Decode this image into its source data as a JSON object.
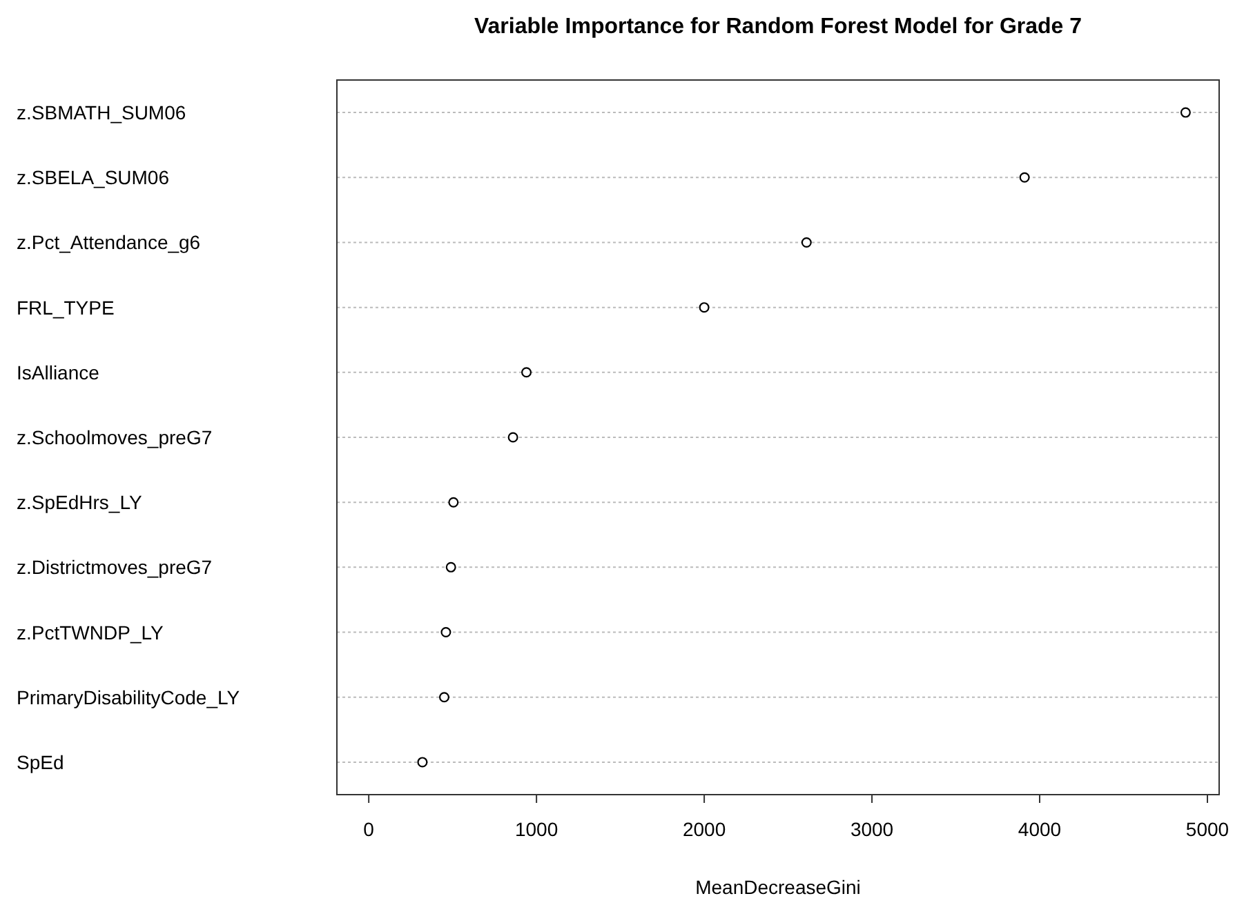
{
  "chart_data": {
    "type": "scatter",
    "orientation": "horizontal",
    "title": "Variable Importance for Random Forest Model for Grade 7",
    "xlabel": "MeanDecreaseGini",
    "categories": [
      "z.SBMATH_SUM06",
      "z.SBELA_SUM06",
      "z.Pct_Attendance_g6",
      "FRL_TYPE",
      "IsAlliance",
      "z.Schoolmoves_preG7",
      "z.SpEdHrs_LY",
      "z.Districtmoves_preG7",
      "z.PctTWNDP_LY",
      "PrimaryDisabilityCode_LY",
      "SpEd"
    ],
    "values": [
      4870,
      3910,
      2610,
      2000,
      940,
      860,
      505,
      490,
      460,
      450,
      320
    ],
    "color": "#000000",
    "xlim": [
      -190,
      5070
    ],
    "xticks": [
      0,
      1000,
      2000,
      3000,
      4000,
      5000
    ],
    "grid": "y",
    "marker": "circle"
  }
}
